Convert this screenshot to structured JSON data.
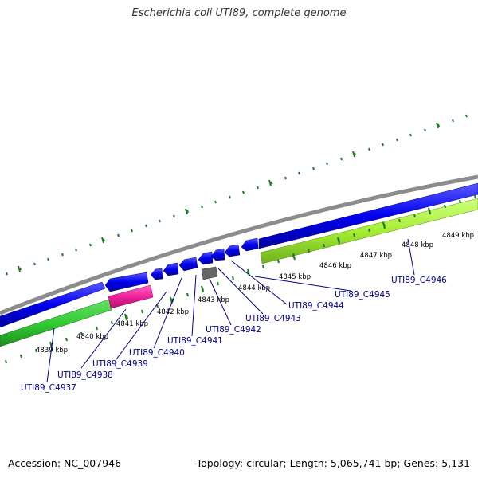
{
  "title": "Escherichia coli UTI89, complete genome",
  "footer": {
    "accession": "Accession: NC_007946",
    "summary": "Topology: circular; Length: 5,065,741 bp; Genes: 5,131"
  },
  "colors": {
    "backbone": "#8c8c8c",
    "forward_cds": "#0000ee",
    "reverse_cds": "#0000ee",
    "highlight_green": "#33cc33",
    "highlight_lime": "#a6ee33",
    "highlight_pink": "#ee2299",
    "other_feature": "#666666",
    "tick": "#1f7a1f",
    "gene_label": "#00008b"
  },
  "kbp_ticks": [
    "4839 kbp",
    "4840 kbp",
    "4841 kbp",
    "4842 kbp",
    "4843 kbp",
    "4844 kbp",
    "4845 kbp",
    "4846 kbp",
    "4847 kbp",
    "4848 kbp",
    "4849 kbp"
  ],
  "genes": [
    "UTI89_C4937",
    "UTI89_C4938",
    "UTI89_C4939",
    "UTI89_C4940",
    "UTI89_C4941",
    "UTI89_C4942",
    "UTI89_C4943",
    "UTI89_C4944",
    "UTI89_C4945",
    "UTI89_C4946"
  ]
}
